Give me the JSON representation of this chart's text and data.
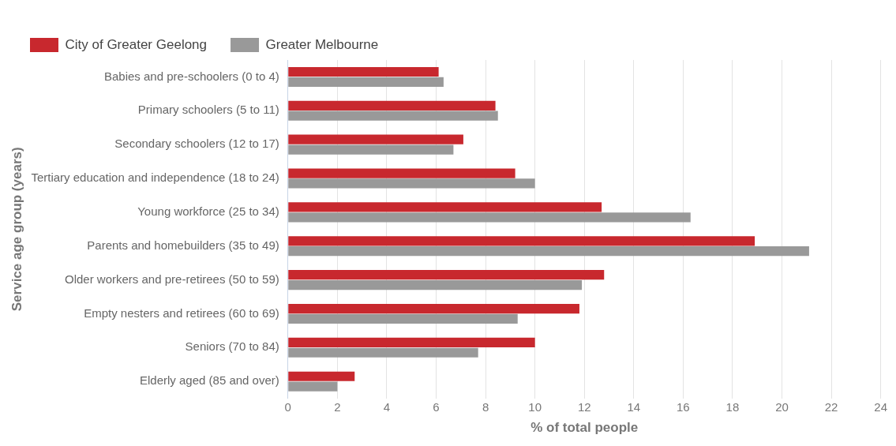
{
  "chart_data": {
    "type": "bar",
    "orientation": "horizontal",
    "xlabel": "% of total people",
    "ylabel": "Service age group (years)",
    "categories": [
      "Babies and pre-schoolers (0 to 4)",
      "Primary schoolers (5 to 11)",
      "Secondary schoolers (12 to 17)",
      "Tertiary education and independence (18 to 24)",
      "Young workforce (25 to 34)",
      "Parents and homebuilders (35 to 49)",
      "Older workers and pre-retirees (50 to 59)",
      "Empty nesters and retirees (60 to 69)",
      "Seniors (70 to 84)",
      "Elderly aged (85 and over)"
    ],
    "series": [
      {
        "name": "City of Greater Geelong",
        "color": "#c8282e",
        "values": [
          6.1,
          8.4,
          7.1,
          9.2,
          12.7,
          18.9,
          12.8,
          11.8,
          10.0,
          2.7
        ]
      },
      {
        "name": "Greater Melbourne",
        "color": "#999999",
        "values": [
          6.3,
          8.5,
          6.7,
          10.0,
          16.3,
          21.1,
          11.9,
          9.3,
          7.7,
          2.0
        ]
      }
    ],
    "xlim": [
      0,
      24
    ],
    "xticks": [
      0,
      2,
      4,
      6,
      8,
      10,
      12,
      14,
      16,
      18,
      20,
      22,
      24
    ],
    "grid": "x",
    "legend": "top left"
  }
}
